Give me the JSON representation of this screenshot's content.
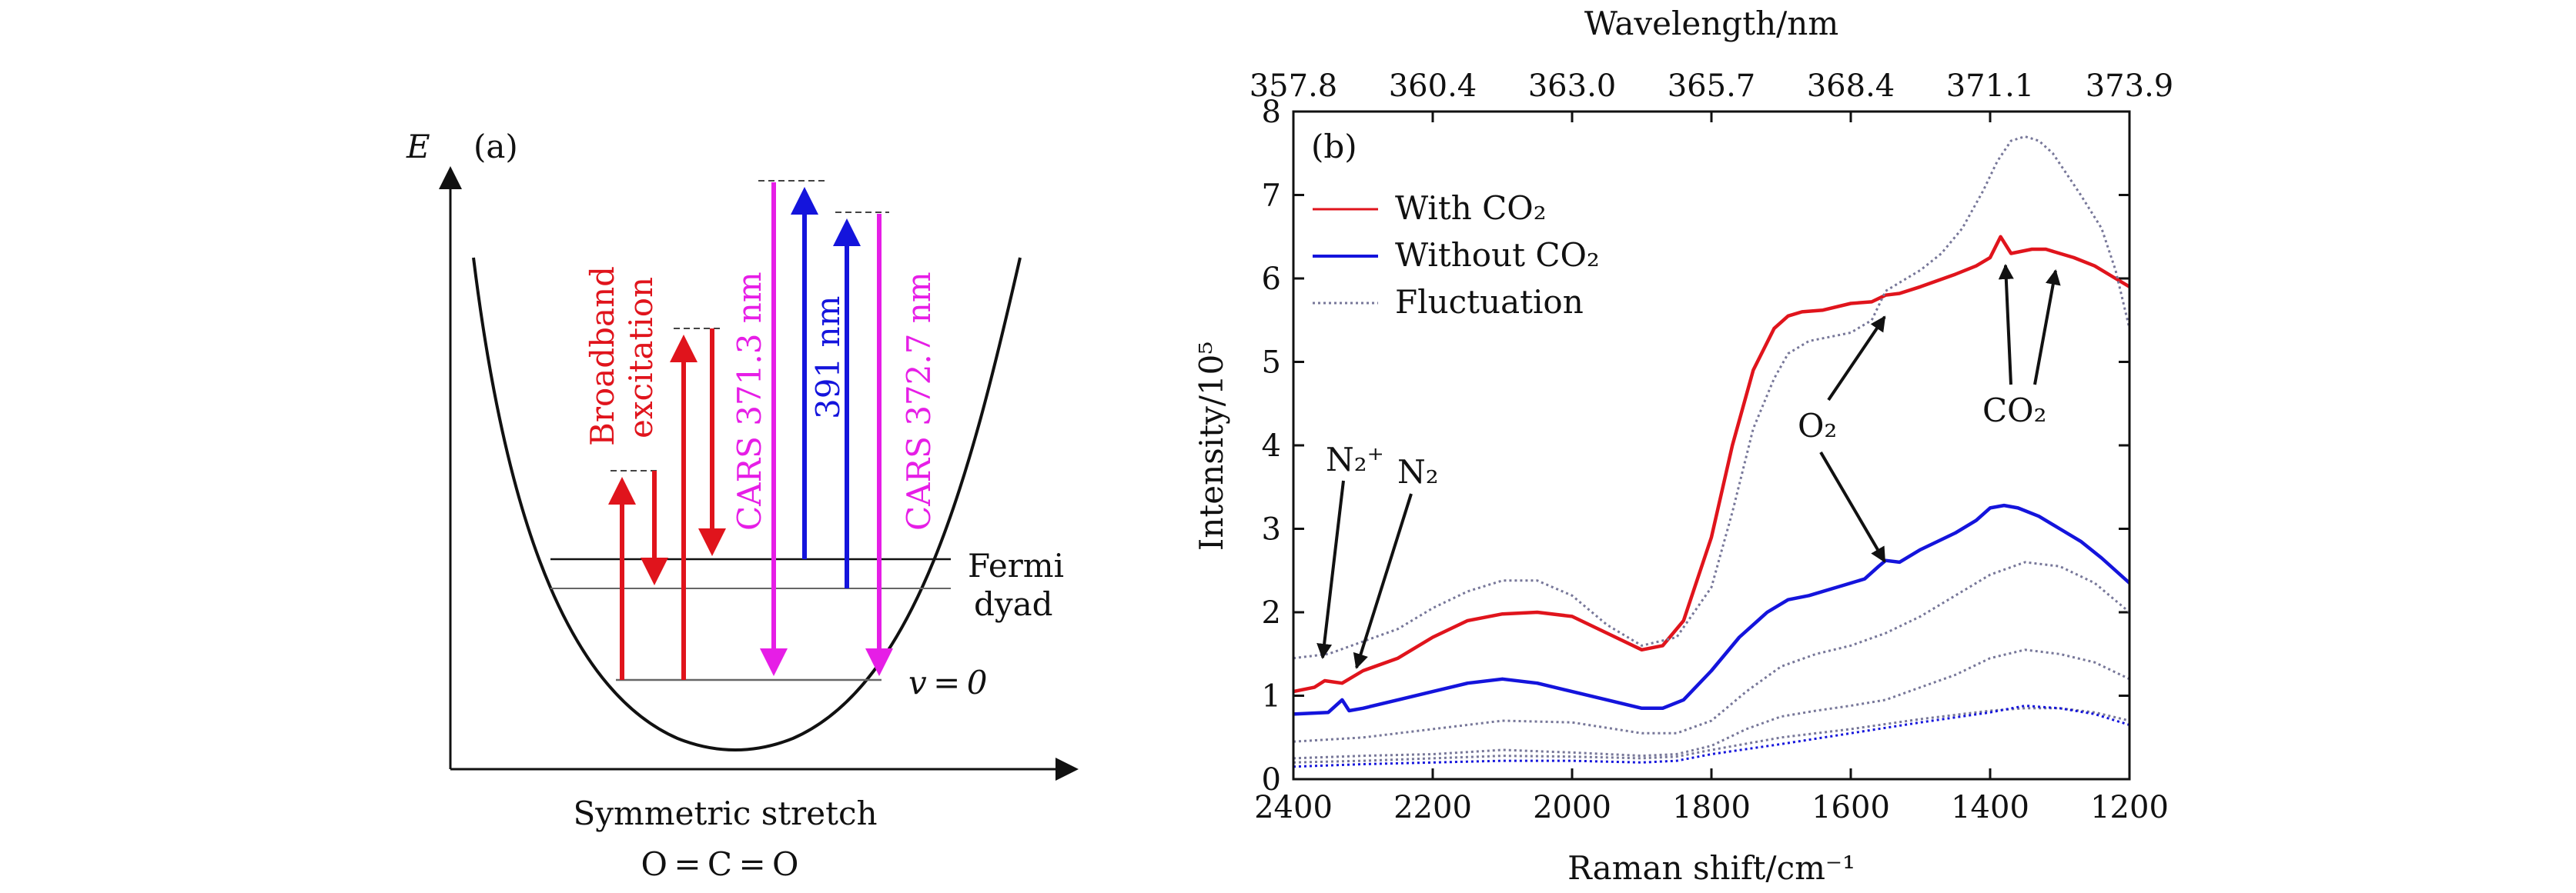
{
  "panel_a": {
    "label": "(a)",
    "axis_y_label": "E",
    "xlabel": "Symmetric stretch",
    "molecule": "O = C = O",
    "broadband_line1": "Broadband",
    "broadband_line2": "excitation",
    "cars1": "CARS 371.3 nm",
    "pump": "391 nm",
    "cars2": "CARS 372.7 nm",
    "fermi_line1": "Fermi",
    "fermi_line2": "dyad",
    "v0": "v = 0",
    "colors": {
      "red": "#e0141c",
      "magenta": "#e61ee6",
      "blue": "#1414dc"
    }
  },
  "chart_data": {
    "type": "line",
    "label": "(b)",
    "xlabel": "Raman shift/cm⁻¹",
    "ylabel": "Intensity/10⁵",
    "top_xlabel": "Wavelength/nm",
    "xlim": [
      2400,
      1200
    ],
    "ylim": [
      0,
      8
    ],
    "xticks": [
      "2400",
      "2200",
      "2000",
      "1800",
      "1600",
      "1400",
      "1200"
    ],
    "yticks": [
      "0",
      "1",
      "2",
      "3",
      "4",
      "5",
      "6",
      "7",
      "8"
    ],
    "top_ticks": [
      "357.8",
      "360.4",
      "363.0",
      "365.7",
      "368.4",
      "371.1",
      "373.9"
    ],
    "legend": [
      {
        "name": "With CO₂",
        "color": "#e0141c",
        "style": "solid"
      },
      {
        "name": "Without CO₂",
        "color": "#1414dc",
        "style": "solid"
      },
      {
        "name": "Fluctuation",
        "color": "#777799",
        "style": "dotted"
      }
    ],
    "annotations": [
      "N₂⁺",
      "N₂",
      "O₂",
      "CO₂"
    ],
    "series": [
      {
        "name": "With CO₂",
        "color": "#e0141c",
        "style": "solid",
        "x": [
          2400,
          2370,
          2355,
          2330,
          2300,
          2250,
          2200,
          2150,
          2100,
          2050,
          2000,
          1950,
          1900,
          1870,
          1840,
          1800,
          1770,
          1740,
          1710,
          1690,
          1670,
          1640,
          1600,
          1570,
          1550,
          1530,
          1500,
          1450,
          1420,
          1400,
          1385,
          1370,
          1340,
          1320,
          1300,
          1280,
          1250,
          1220,
          1200
        ],
        "y": [
          1.05,
          1.1,
          1.18,
          1.15,
          1.3,
          1.45,
          1.7,
          1.9,
          1.98,
          2.0,
          1.95,
          1.75,
          1.55,
          1.6,
          1.9,
          2.9,
          4.0,
          4.9,
          5.4,
          5.55,
          5.6,
          5.62,
          5.7,
          5.72,
          5.8,
          5.82,
          5.9,
          6.05,
          6.15,
          6.25,
          6.5,
          6.3,
          6.35,
          6.35,
          6.3,
          6.25,
          6.15,
          6.0,
          5.9
        ]
      },
      {
        "name": "Without CO₂",
        "color": "#1414dc",
        "style": "solid",
        "x": [
          2400,
          2350,
          2330,
          2320,
          2300,
          2250,
          2200,
          2150,
          2100,
          2050,
          2000,
          1950,
          1900,
          1870,
          1840,
          1800,
          1760,
          1720,
          1690,
          1660,
          1620,
          1580,
          1560,
          1550,
          1530,
          1500,
          1450,
          1420,
          1400,
          1380,
          1360,
          1330,
          1300,
          1270,
          1240,
          1200
        ],
        "y": [
          0.78,
          0.8,
          0.95,
          0.82,
          0.85,
          0.95,
          1.05,
          1.15,
          1.2,
          1.15,
          1.05,
          0.95,
          0.85,
          0.85,
          0.95,
          1.3,
          1.7,
          2.0,
          2.15,
          2.2,
          2.3,
          2.4,
          2.55,
          2.62,
          2.6,
          2.75,
          2.95,
          3.1,
          3.25,
          3.28,
          3.25,
          3.15,
          3.0,
          2.85,
          2.65,
          2.35
        ]
      },
      {
        "name": "Fluctuation",
        "color": "#777799",
        "style": "dotted",
        "x": [
          2400,
          2350,
          2300,
          2250,
          2200,
          2150,
          2100,
          2050,
          2000,
          1950,
          1900,
          1850,
          1800,
          1770,
          1740,
          1710,
          1690,
          1660,
          1630,
          1600,
          1570,
          1550,
          1520,
          1500,
          1470,
          1440,
          1410,
          1390,
          1370,
          1350,
          1330,
          1310,
          1290,
          1270,
          1240,
          1220,
          1200
        ],
        "y": [
          1.45,
          1.5,
          1.65,
          1.8,
          2.05,
          2.25,
          2.38,
          2.38,
          2.2,
          1.85,
          1.6,
          1.7,
          2.3,
          3.2,
          4.2,
          4.8,
          5.1,
          5.25,
          5.3,
          5.35,
          5.5,
          5.85,
          6.0,
          6.1,
          6.3,
          6.6,
          7.05,
          7.4,
          7.65,
          7.7,
          7.65,
          7.5,
          7.25,
          7.0,
          6.6,
          6.1,
          5.4
        ]
      },
      {
        "name": "",
        "color": "#777799",
        "style": "dotted",
        "x": [
          2400,
          2300,
          2200,
          2100,
          2000,
          1900,
          1850,
          1800,
          1750,
          1700,
          1650,
          1600,
          1550,
          1500,
          1450,
          1400,
          1350,
          1300,
          1250,
          1200
        ],
        "y": [
          0.45,
          0.5,
          0.6,
          0.7,
          0.68,
          0.55,
          0.55,
          0.7,
          1.05,
          1.35,
          1.5,
          1.6,
          1.75,
          1.95,
          2.2,
          2.45,
          2.6,
          2.55,
          2.35,
          2.0
        ]
      },
      {
        "name": "",
        "color": "#777799",
        "style": "dotted",
        "x": [
          2400,
          2300,
          2200,
          2100,
          2000,
          1900,
          1850,
          1800,
          1750,
          1700,
          1650,
          1600,
          1550,
          1500,
          1450,
          1400,
          1350,
          1300,
          1250,
          1200
        ],
        "y": [
          0.25,
          0.28,
          0.3,
          0.35,
          0.32,
          0.28,
          0.3,
          0.4,
          0.6,
          0.75,
          0.82,
          0.88,
          0.95,
          1.1,
          1.25,
          1.45,
          1.55,
          1.5,
          1.4,
          1.2
        ]
      },
      {
        "name": "",
        "color": "#777799",
        "style": "dotted",
        "x": [
          2400,
          2300,
          2200,
          2100,
          2000,
          1900,
          1850,
          1800,
          1700,
          1600,
          1500,
          1400,
          1350,
          1300,
          1250,
          1200
        ],
        "y": [
          0.2,
          0.22,
          0.25,
          0.28,
          0.27,
          0.25,
          0.27,
          0.35,
          0.5,
          0.6,
          0.72,
          0.82,
          0.85,
          0.85,
          0.8,
          0.7
        ]
      },
      {
        "name": "",
        "color": "#1414dc",
        "style": "dotted",
        "x": [
          2400,
          2300,
          2200,
          2100,
          2000,
          1900,
          1850,
          1800,
          1700,
          1600,
          1500,
          1400,
          1350,
          1300,
          1250,
          1200
        ],
        "y": [
          0.15,
          0.18,
          0.2,
          0.22,
          0.22,
          0.2,
          0.22,
          0.3,
          0.42,
          0.55,
          0.68,
          0.8,
          0.88,
          0.85,
          0.78,
          0.65
        ]
      }
    ]
  }
}
